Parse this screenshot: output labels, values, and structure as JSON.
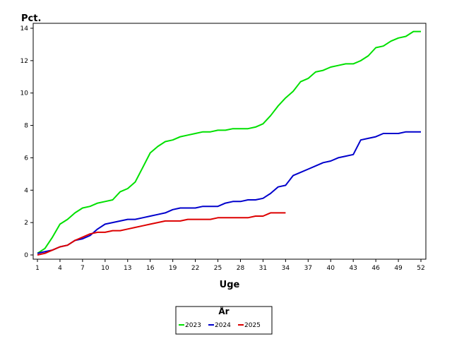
{
  "chart_data": {
    "type": "line",
    "title": "",
    "xlabel": "Uge",
    "ylabel": "Pct.",
    "xlim": [
      1,
      52
    ],
    "ylim": [
      0,
      14
    ],
    "xticks": [
      1,
      4,
      7,
      10,
      13,
      16,
      19,
      22,
      25,
      28,
      31,
      34,
      37,
      40,
      43,
      46,
      49,
      52
    ],
    "yticks": [
      0,
      2,
      4,
      6,
      8,
      10,
      12,
      14
    ],
    "grid": false,
    "legend": {
      "title": "År",
      "placement": "bottom-center"
    },
    "series": [
      {
        "name": "2023",
        "color": "#00e000",
        "x": [
          1,
          2,
          3,
          4,
          5,
          6,
          7,
          8,
          9,
          10,
          11,
          12,
          13,
          14,
          15,
          16,
          17,
          18,
          19,
          20,
          21,
          22,
          23,
          24,
          25,
          26,
          27,
          28,
          29,
          30,
          31,
          32,
          33,
          34,
          35,
          36,
          37,
          38,
          39,
          40,
          41,
          42,
          43,
          44,
          45,
          46,
          47,
          48,
          49,
          50,
          51,
          52
        ],
        "y": [
          0.1,
          0.4,
          1.1,
          1.9,
          2.2,
          2.6,
          2.9,
          3.0,
          3.2,
          3.3,
          3.4,
          3.9,
          4.1,
          4.5,
          5.4,
          6.3,
          6.7,
          7.0,
          7.1,
          7.3,
          7.4,
          7.5,
          7.6,
          7.6,
          7.7,
          7.7,
          7.8,
          7.8,
          7.8,
          7.9,
          8.1,
          8.6,
          9.2,
          9.7,
          10.1,
          10.7,
          10.9,
          11.3,
          11.4,
          11.6,
          11.7,
          11.8,
          11.8,
          12.0,
          12.3,
          12.8,
          12.9,
          13.2,
          13.4,
          13.5,
          13.8,
          13.8
        ]
      },
      {
        "name": "2024",
        "color": "#0000cc",
        "x": [
          1,
          2,
          3,
          4,
          5,
          6,
          7,
          8,
          9,
          10,
          11,
          12,
          13,
          14,
          15,
          16,
          17,
          18,
          19,
          20,
          21,
          22,
          23,
          24,
          25,
          26,
          27,
          28,
          29,
          30,
          31,
          32,
          33,
          34,
          35,
          36,
          37,
          38,
          39,
          40,
          41,
          42,
          43,
          44,
          45,
          46,
          47,
          48,
          49,
          50,
          51,
          52
        ],
        "y": [
          0.1,
          0.2,
          0.3,
          0.5,
          0.6,
          0.9,
          1.0,
          1.2,
          1.6,
          1.9,
          2.0,
          2.1,
          2.2,
          2.2,
          2.3,
          2.4,
          2.5,
          2.6,
          2.8,
          2.9,
          2.9,
          2.9,
          3.0,
          3.0,
          3.0,
          3.2,
          3.3,
          3.3,
          3.4,
          3.4,
          3.5,
          3.8,
          4.2,
          4.3,
          4.9,
          5.1,
          5.3,
          5.5,
          5.7,
          5.8,
          6.0,
          6.1,
          6.2,
          7.1,
          7.2,
          7.3,
          7.5,
          7.5,
          7.5,
          7.6,
          7.6,
          7.6
        ]
      },
      {
        "name": "2025",
        "color": "#dd0000",
        "x": [
          1,
          2,
          3,
          4,
          5,
          6,
          7,
          8,
          9,
          10,
          11,
          12,
          13,
          14,
          15,
          16,
          17,
          18,
          19,
          20,
          21,
          22,
          23,
          24,
          25,
          26,
          27,
          28,
          29,
          30,
          31,
          32,
          33,
          34
        ],
        "y": [
          0.0,
          0.1,
          0.3,
          0.5,
          0.6,
          0.9,
          1.1,
          1.3,
          1.4,
          1.4,
          1.5,
          1.5,
          1.6,
          1.7,
          1.8,
          1.9,
          2.0,
          2.1,
          2.1,
          2.1,
          2.2,
          2.2,
          2.2,
          2.2,
          2.3,
          2.3,
          2.3,
          2.3,
          2.3,
          2.4,
          2.4,
          2.6,
          2.6,
          2.6
        ]
      }
    ]
  }
}
